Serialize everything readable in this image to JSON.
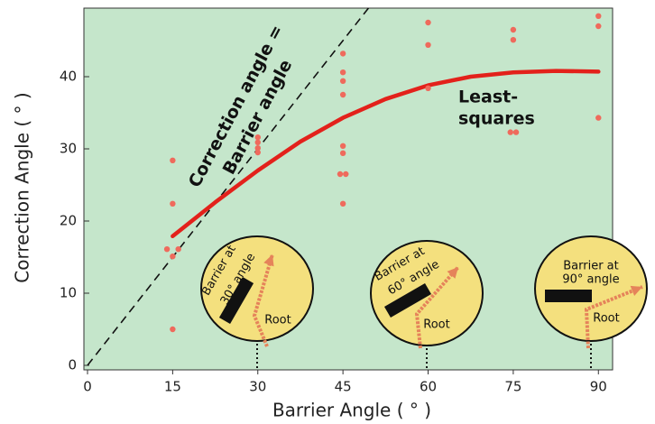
{
  "chart_data": {
    "type": "scatter",
    "x_label": "Barrier Angle ( ° )",
    "y_label": "Correction Angle ( ° )",
    "xlim": [
      0,
      92.5
    ],
    "ylim": [
      0,
      49.5
    ],
    "xticks": [
      0,
      15,
      30,
      45,
      60,
      75,
      90
    ],
    "yticks": [
      0,
      10,
      20,
      30,
      40
    ],
    "background": "#c5e6cb",
    "points": {
      "color": "#ef6a5c",
      "x": [
        15,
        15,
        14,
        16,
        15,
        15,
        30,
        30,
        30,
        30,
        45,
        45,
        45,
        45,
        45,
        45,
        44.5,
        45.5,
        45,
        60,
        60,
        60,
        75,
        75,
        74.5,
        75.5,
        90,
        90,
        90
      ],
      "y": [
        28.4,
        22.4,
        16.1,
        16.1,
        15.1,
        5,
        31.6,
        30.9,
        30.1,
        29.5,
        43.2,
        40.6,
        39.4,
        37.5,
        30.4,
        29.4,
        26.5,
        26.5,
        22.4,
        47.5,
        44.4,
        38.4,
        46.5,
        45.1,
        32.3,
        32.3,
        48.4,
        47,
        34.3
      ]
    },
    "fit": {
      "color": "#e3211b",
      "label": [
        "Least-",
        "squares"
      ],
      "x": [
        15,
        22.5,
        30,
        37.5,
        45,
        52.5,
        60,
        67.5,
        75,
        82.5,
        90
      ],
      "y": [
        17.9,
        22.6,
        27,
        31,
        34.3,
        36.9,
        38.8,
        40,
        40.6,
        40.8,
        40.7
      ]
    },
    "identity_line": {
      "color": "#111111",
      "label": [
        "Correction angle =",
        "Barrier angle"
      ],
      "x": [
        0,
        49.5
      ],
      "y": [
        0,
        49.5
      ]
    },
    "insets": [
      {
        "label": [
          "Barrier at",
          "30° angle"
        ],
        "root": "Root"
      },
      {
        "label": [
          "Barrier at",
          "60° angle"
        ],
        "root": "Root"
      },
      {
        "label": [
          "Barrier at",
          "90° angle"
        ],
        "root": "Root"
      }
    ]
  }
}
